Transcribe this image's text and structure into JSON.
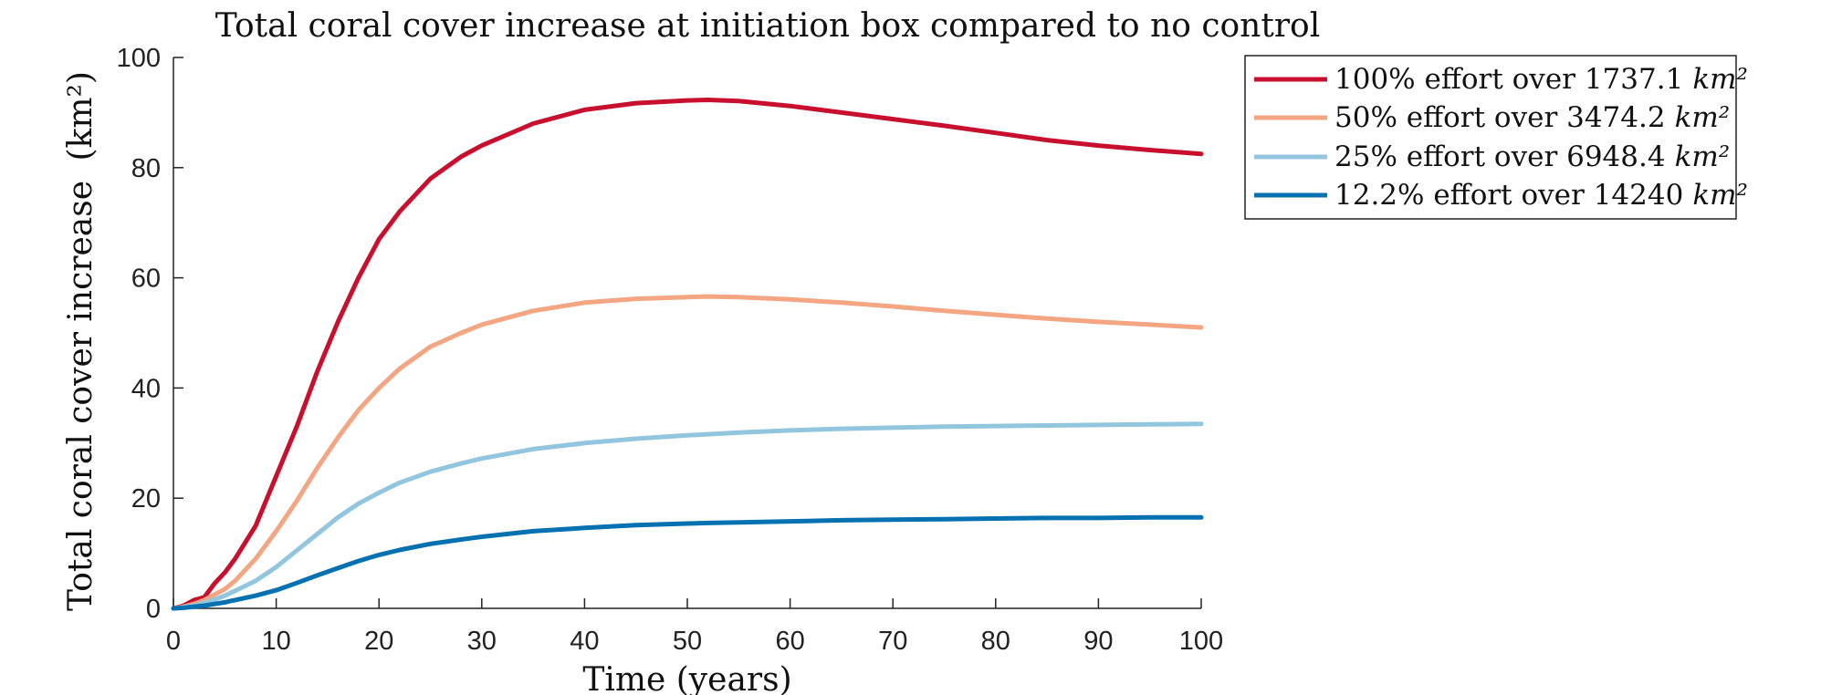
{
  "chart_data": {
    "type": "line",
    "title": "Total coral cover increase at initiation box compared to no control",
    "xlabel": "Time (years)",
    "ylabel_text": "Total coral cover increase",
    "ylabel_unit": "(km²)",
    "xlim": [
      0,
      100
    ],
    "ylim": [
      0,
      100
    ],
    "xticks": [
      0,
      10,
      20,
      30,
      40,
      50,
      60,
      70,
      80,
      90,
      100
    ],
    "yticks": [
      0,
      20,
      40,
      60,
      80,
      100
    ],
    "grid": false,
    "legend_position": "outside-top-right",
    "x": [
      0,
      1,
      2,
      3,
      4,
      5,
      6,
      8,
      10,
      12,
      14,
      16,
      18,
      20,
      22,
      25,
      28,
      30,
      35,
      40,
      45,
      50,
      52,
      55,
      60,
      65,
      70,
      75,
      80,
      85,
      90,
      95,
      100
    ],
    "series": [
      {
        "legend_text": "100% effort over 1737.1",
        "legend_unit": "km²",
        "color": "#c8102e",
        "values": [
          0,
          0.5,
          1.5,
          2,
          4.5,
          6.5,
          9,
          15,
          24,
          33,
          43,
          52,
          60,
          67,
          72,
          78,
          82,
          84,
          88,
          90.5,
          91.7,
          92.2,
          92.3,
          92.1,
          91.2,
          90,
          88.8,
          87.6,
          86.3,
          85,
          84,
          83.2,
          82.5
        ]
      },
      {
        "legend_text": "50% effort over 3474.2",
        "legend_unit": "km²",
        "color": "#f4a582",
        "values": [
          0,
          0.3,
          0.8,
          1.5,
          2.5,
          3.5,
          5,
          9,
          14,
          19.5,
          25.5,
          31,
          36,
          40,
          43.5,
          47.5,
          50,
          51.5,
          54,
          55.5,
          56.2,
          56.5,
          56.6,
          56.5,
          56.1,
          55.5,
          54.8,
          54,
          53.3,
          52.6,
          52,
          51.5,
          51
        ]
      },
      {
        "legend_text": "25% effort over 6948.4",
        "legend_unit": "km²",
        "color": "#92c5de",
        "values": [
          0,
          0.2,
          0.5,
          1,
          1.6,
          2.3,
          3.2,
          5,
          7.5,
          10.5,
          13.5,
          16.5,
          19,
          21,
          22.8,
          24.8,
          26.3,
          27.2,
          28.9,
          30,
          30.8,
          31.4,
          31.6,
          31.9,
          32.3,
          32.6,
          32.8,
          33,
          33.1,
          33.2,
          33.3,
          33.4,
          33.5
        ]
      },
      {
        "legend_text": "12.2% effort over 14240",
        "legend_unit": "km²",
        "color": "#0571b0",
        "values": [
          0,
          0.1,
          0.3,
          0.5,
          0.8,
          1.1,
          1.5,
          2.3,
          3.3,
          4.6,
          6,
          7.3,
          8.6,
          9.7,
          10.6,
          11.7,
          12.5,
          13,
          14,
          14.6,
          15.1,
          15.4,
          15.5,
          15.6,
          15.8,
          16,
          16.1,
          16.2,
          16.3,
          16.4,
          16.4,
          16.5,
          16.5
        ]
      }
    ]
  }
}
